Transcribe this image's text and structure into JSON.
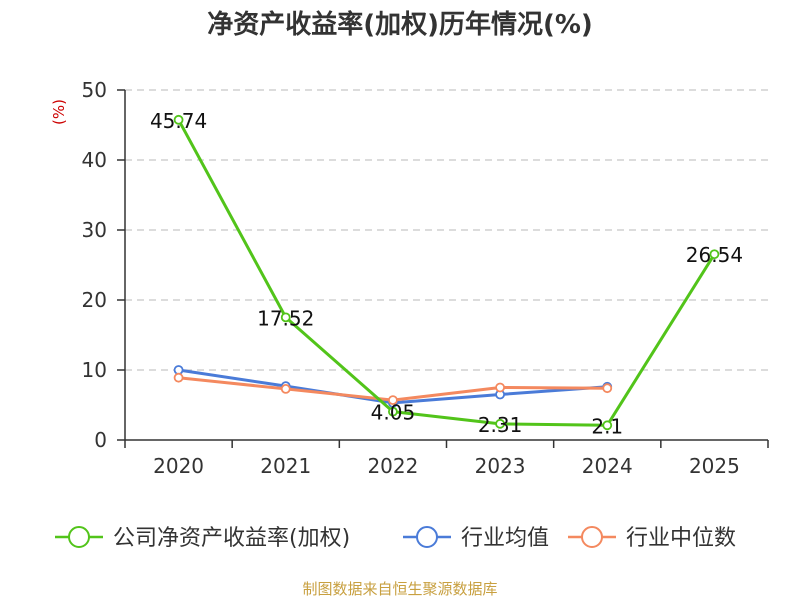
{
  "chart_data": {
    "type": "line",
    "title": "净资产收益率(加权)历年情况(%)",
    "ylabel": "(%)",
    "xlabel": "",
    "categories": [
      "2020",
      "2021",
      "2022",
      "2023",
      "2024",
      "2025"
    ],
    "ylim": [
      0,
      50
    ],
    "yticks": [
      0,
      10,
      20,
      30,
      40,
      50
    ],
    "grid": true,
    "legend_position": "bottom",
    "series": [
      {
        "name": "公司净资产收益率(加权)",
        "color": "#52c41a",
        "values": [
          45.74,
          17.52,
          4.05,
          2.31,
          2.1,
          26.54
        ],
        "labels": [
          "45.74",
          "17.52",
          "4.05",
          "2.31",
          "2.1",
          "26.54"
        ]
      },
      {
        "name": "行业均值",
        "color": "#4a7bd8",
        "values": [
          10.0,
          7.7,
          5.3,
          6.5,
          7.6,
          null
        ]
      },
      {
        "name": "行业中位数",
        "color": "#f4895f",
        "values": [
          8.9,
          7.3,
          5.7,
          7.5,
          7.4,
          null
        ]
      }
    ]
  },
  "source": "制图数据来自恒生聚源数据库"
}
